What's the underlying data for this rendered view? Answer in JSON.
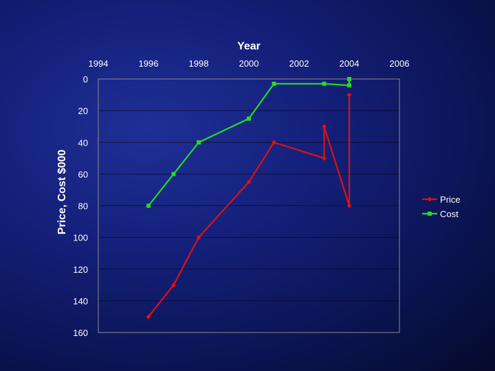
{
  "chart_data": {
    "type": "line",
    "xlabel": "Year",
    "ylabel": "Price, Cost $000",
    "x_axis_position": "top",
    "y_axis_inverted": true,
    "xlim": [
      1994,
      2006
    ],
    "ylim": [
      0,
      160
    ],
    "x_ticks": [
      1994,
      1996,
      1998,
      2000,
      2002,
      2004,
      2006
    ],
    "y_ticks": [
      0,
      20,
      40,
      60,
      80,
      100,
      120,
      140,
      160
    ],
    "grid": "horizontal",
    "legend_position": "right",
    "series": [
      {
        "name": "Price",
        "color": "#e01010",
        "marker": "diamond",
        "x": [
          1996,
          1997,
          1998,
          2000,
          2001,
          2003,
          2003,
          2004,
          2004
        ],
        "y": [
          150,
          130,
          100,
          65,
          40,
          50,
          30,
          80,
          10
        ]
      },
      {
        "name": "Cost",
        "color": "#22dd22",
        "marker": "square",
        "x": [
          1996,
          1997,
          1998,
          2000,
          2001,
          2003,
          2004,
          2004
        ],
        "y": [
          80,
          60,
          40,
          25,
          3,
          3,
          4,
          0
        ]
      }
    ]
  }
}
